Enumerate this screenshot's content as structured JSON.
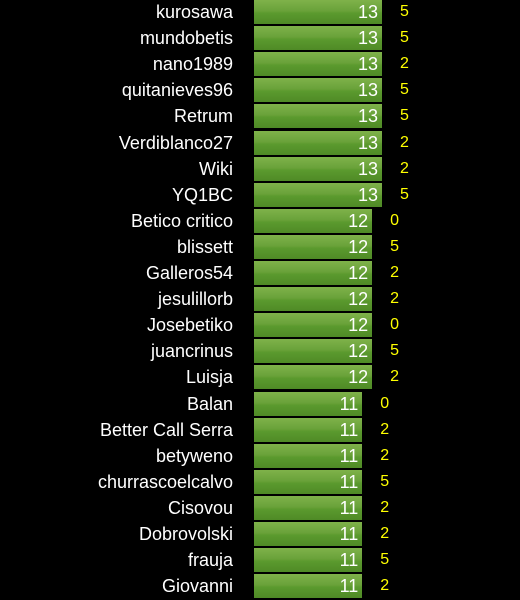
{
  "chart_data": {
    "type": "bar",
    "orientation": "horizontal",
    "xlim": [
      0,
      13
    ],
    "categories": [
      "kurosawa",
      "mundobetis",
      "nano1989",
      "quitanieves96",
      "Retrum",
      "Verdiblanco27",
      "Wiki",
      "YQ1BC",
      "Betico critico",
      "blissett",
      "Galleros54",
      "jesulillorb",
      "Josebetiko",
      "juancrinus",
      "Luisja",
      "Balan",
      "Better Call Serra",
      "betyweno",
      "churrascoelcalvo",
      "Cisovou",
      "Dobrovolski",
      "frauja",
      "Giovanni"
    ],
    "values": [
      13,
      13,
      13,
      13,
      13,
      13,
      13,
      13,
      12,
      12,
      12,
      12,
      12,
      12,
      12,
      11,
      11,
      11,
      11,
      11,
      11,
      11,
      11
    ],
    "secondary_values": [
      5,
      5,
      2,
      5,
      5,
      2,
      2,
      5,
      0,
      5,
      2,
      2,
      0,
      5,
      2,
      0,
      2,
      2,
      5,
      2,
      2,
      5,
      2
    ],
    "colors": {
      "bar": "#6aa23a",
      "label": "#ffffff",
      "secondary": "#ffff00",
      "background": "#000000"
    }
  }
}
